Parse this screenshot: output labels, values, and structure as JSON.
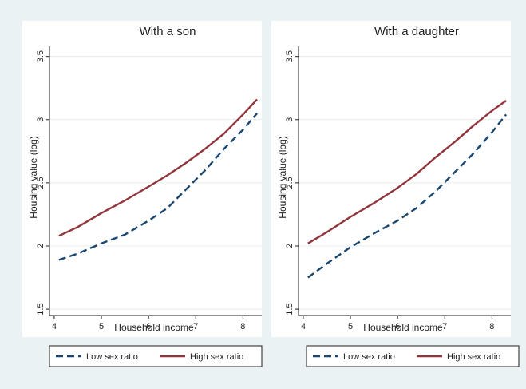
{
  "chart_data": [
    {
      "type": "line",
      "title": "With a son",
      "xlabel": "Household income",
      "ylabel": "Housing value (log)",
      "xlim": [
        3.9,
        8.4
      ],
      "ylim": [
        1.45,
        3.58
      ],
      "xticks": [
        "4",
        "5",
        "6",
        "7",
        "8"
      ],
      "yticks": [
        "1.5",
        "2",
        "2.5",
        "3",
        "3.5"
      ],
      "grid": true,
      "legend_position": "bottom",
      "series": [
        {
          "name": "Low sex ratio",
          "color": "#1a476f",
          "style": "dashed",
          "x": [
            4.1,
            4.5,
            5.0,
            5.5,
            6.0,
            6.4,
            6.8,
            7.2,
            7.6,
            8.0,
            8.3
          ],
          "y": [
            1.89,
            1.94,
            2.02,
            2.09,
            2.2,
            2.3,
            2.45,
            2.6,
            2.77,
            2.92,
            3.05
          ]
        },
        {
          "name": "High sex ratio",
          "color": "#90353b",
          "style": "solid",
          "x": [
            4.1,
            4.5,
            5.0,
            5.5,
            6.0,
            6.4,
            6.8,
            7.2,
            7.6,
            8.0,
            8.3
          ],
          "y": [
            2.08,
            2.15,
            2.26,
            2.36,
            2.47,
            2.56,
            2.66,
            2.77,
            2.89,
            3.04,
            3.16
          ]
        }
      ]
    },
    {
      "type": "line",
      "title": "With a daughter",
      "xlabel": "Household income",
      "ylabel": "Housing value (log)",
      "xlim": [
        3.9,
        8.4
      ],
      "ylim": [
        1.45,
        3.58
      ],
      "xticks": [
        "4",
        "5",
        "6",
        "7",
        "8"
      ],
      "yticks": [
        "1.5",
        "2",
        "2.5",
        "3",
        "3.5"
      ],
      "grid": true,
      "legend_position": "bottom",
      "series": [
        {
          "name": "Low sex ratio",
          "color": "#1a476f",
          "style": "dashed",
          "x": [
            4.1,
            4.5,
            5.0,
            5.5,
            6.0,
            6.4,
            6.8,
            7.2,
            7.6,
            8.0,
            8.3
          ],
          "y": [
            1.75,
            1.86,
            1.99,
            2.1,
            2.2,
            2.3,
            2.43,
            2.58,
            2.73,
            2.9,
            3.04
          ]
        },
        {
          "name": "High sex ratio",
          "color": "#90353b",
          "style": "solid",
          "x": [
            4.1,
            4.5,
            5.0,
            5.5,
            6.0,
            6.4,
            6.8,
            7.2,
            7.6,
            8.0,
            8.3
          ],
          "y": [
            2.02,
            2.11,
            2.23,
            2.34,
            2.46,
            2.57,
            2.7,
            2.82,
            2.95,
            3.07,
            3.15
          ]
        }
      ]
    }
  ]
}
